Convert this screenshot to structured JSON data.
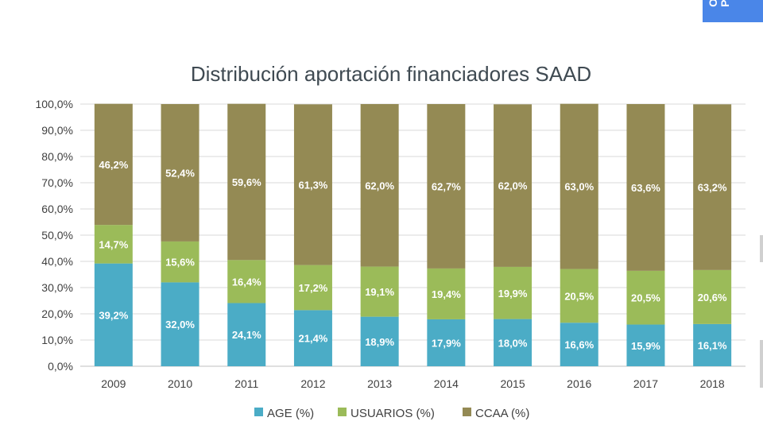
{
  "corner_tab": {
    "text": "O\nP"
  },
  "chart_data": {
    "type": "bar",
    "stacked": true,
    "title": "Distribución aportación financiadores SAAD",
    "categories": [
      "2009",
      "2010",
      "2011",
      "2012",
      "2013",
      "2014",
      "2015",
      "2016",
      "2017",
      "2018"
    ],
    "series": [
      {
        "name": "AGE (%)",
        "color": "#4bacc6",
        "values": [
          39.2,
          32.0,
          24.1,
          21.4,
          18.9,
          17.9,
          18.0,
          16.6,
          15.9,
          16.1
        ],
        "labels": [
          "39,2%",
          "32,0%",
          "24,1%",
          "21,4%",
          "18,9%",
          "17,9%",
          "18,0%",
          "16,6%",
          "15,9%",
          "16,1%"
        ]
      },
      {
        "name": "USUARIOS (%)",
        "color": "#9bbb59",
        "values": [
          14.7,
          15.6,
          16.4,
          17.2,
          19.1,
          19.4,
          19.9,
          20.5,
          20.5,
          20.6
        ],
        "labels": [
          "14,7%",
          "15,6%",
          "16,4%",
          "17,2%",
          "19,1%",
          "19,4%",
          "19,9%",
          "20,5%",
          "20,5%",
          "20,6%"
        ]
      },
      {
        "name": "CCAA (%)",
        "color": "#948a54",
        "values": [
          46.2,
          52.4,
          59.6,
          61.3,
          62.0,
          62.7,
          62.0,
          63.0,
          63.6,
          63.2
        ],
        "labels": [
          "46,2%",
          "52,4%",
          "59,6%",
          "61,3%",
          "62,0%",
          "62,7%",
          "62,0%",
          "63,0%",
          "63,6%",
          "63,2%"
        ]
      }
    ],
    "ylim": [
      0,
      100
    ],
    "y_ticks": [
      "0,0%",
      "10,0%",
      "20,0%",
      "30,0%",
      "40,0%",
      "50,0%",
      "60,0%",
      "70,0%",
      "80,0%",
      "90,0%",
      "100,0%"
    ],
    "grid": true,
    "legend_position": "bottom"
  }
}
